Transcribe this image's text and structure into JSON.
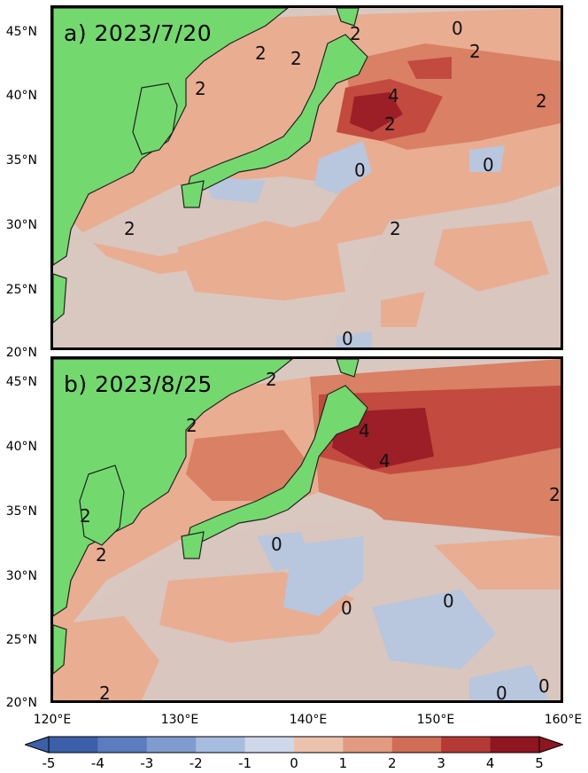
{
  "panels": [
    {
      "title": "a) 2023/7/20"
    },
    {
      "title": "b) 2023/8/25"
    }
  ],
  "lat_ticks": [
    "45°N",
    "40°N",
    "35°N",
    "30°N",
    "25°N",
    "20°N"
  ],
  "lon_ticks": [
    "120°E",
    "130°E",
    "140°E",
    "150°E",
    "160°E"
  ],
  "colorbar": {
    "ticks": [
      "-5",
      "-4",
      "-3",
      "-2",
      "-1",
      "0",
      "1",
      "2",
      "3",
      "4",
      "5"
    ],
    "colors": [
      "#3b5fa8",
      "#5b7cbe",
      "#7f9ccf",
      "#a6bde0",
      "#cfd8ea",
      "#e6dcd5",
      "#ebc3ad",
      "#e29b80",
      "#d06d56",
      "#b53a35",
      "#8e1620"
    ]
  },
  "colors": {
    "land": "#73d96e",
    "anomaly_0_1": "#d8c6bf",
    "anomaly_1_2": "#e9ad92",
    "anomaly_2_3": "#d98065",
    "anomaly_3_4": "#c24a3f",
    "anomaly_4_5": "#9c1e26",
    "anomaly_neg": "#b8c6de"
  },
  "contour_labels_a": [
    "2",
    "2",
    "2",
    "2",
    "2",
    "0",
    "2",
    "4",
    "2",
    "2",
    "0",
    "0",
    "2",
    "0"
  ],
  "contour_labels_b": [
    "2",
    "2",
    "2",
    "4",
    "4",
    "2",
    "2",
    "0",
    "0",
    "0",
    "0",
    "0",
    "2"
  ]
}
